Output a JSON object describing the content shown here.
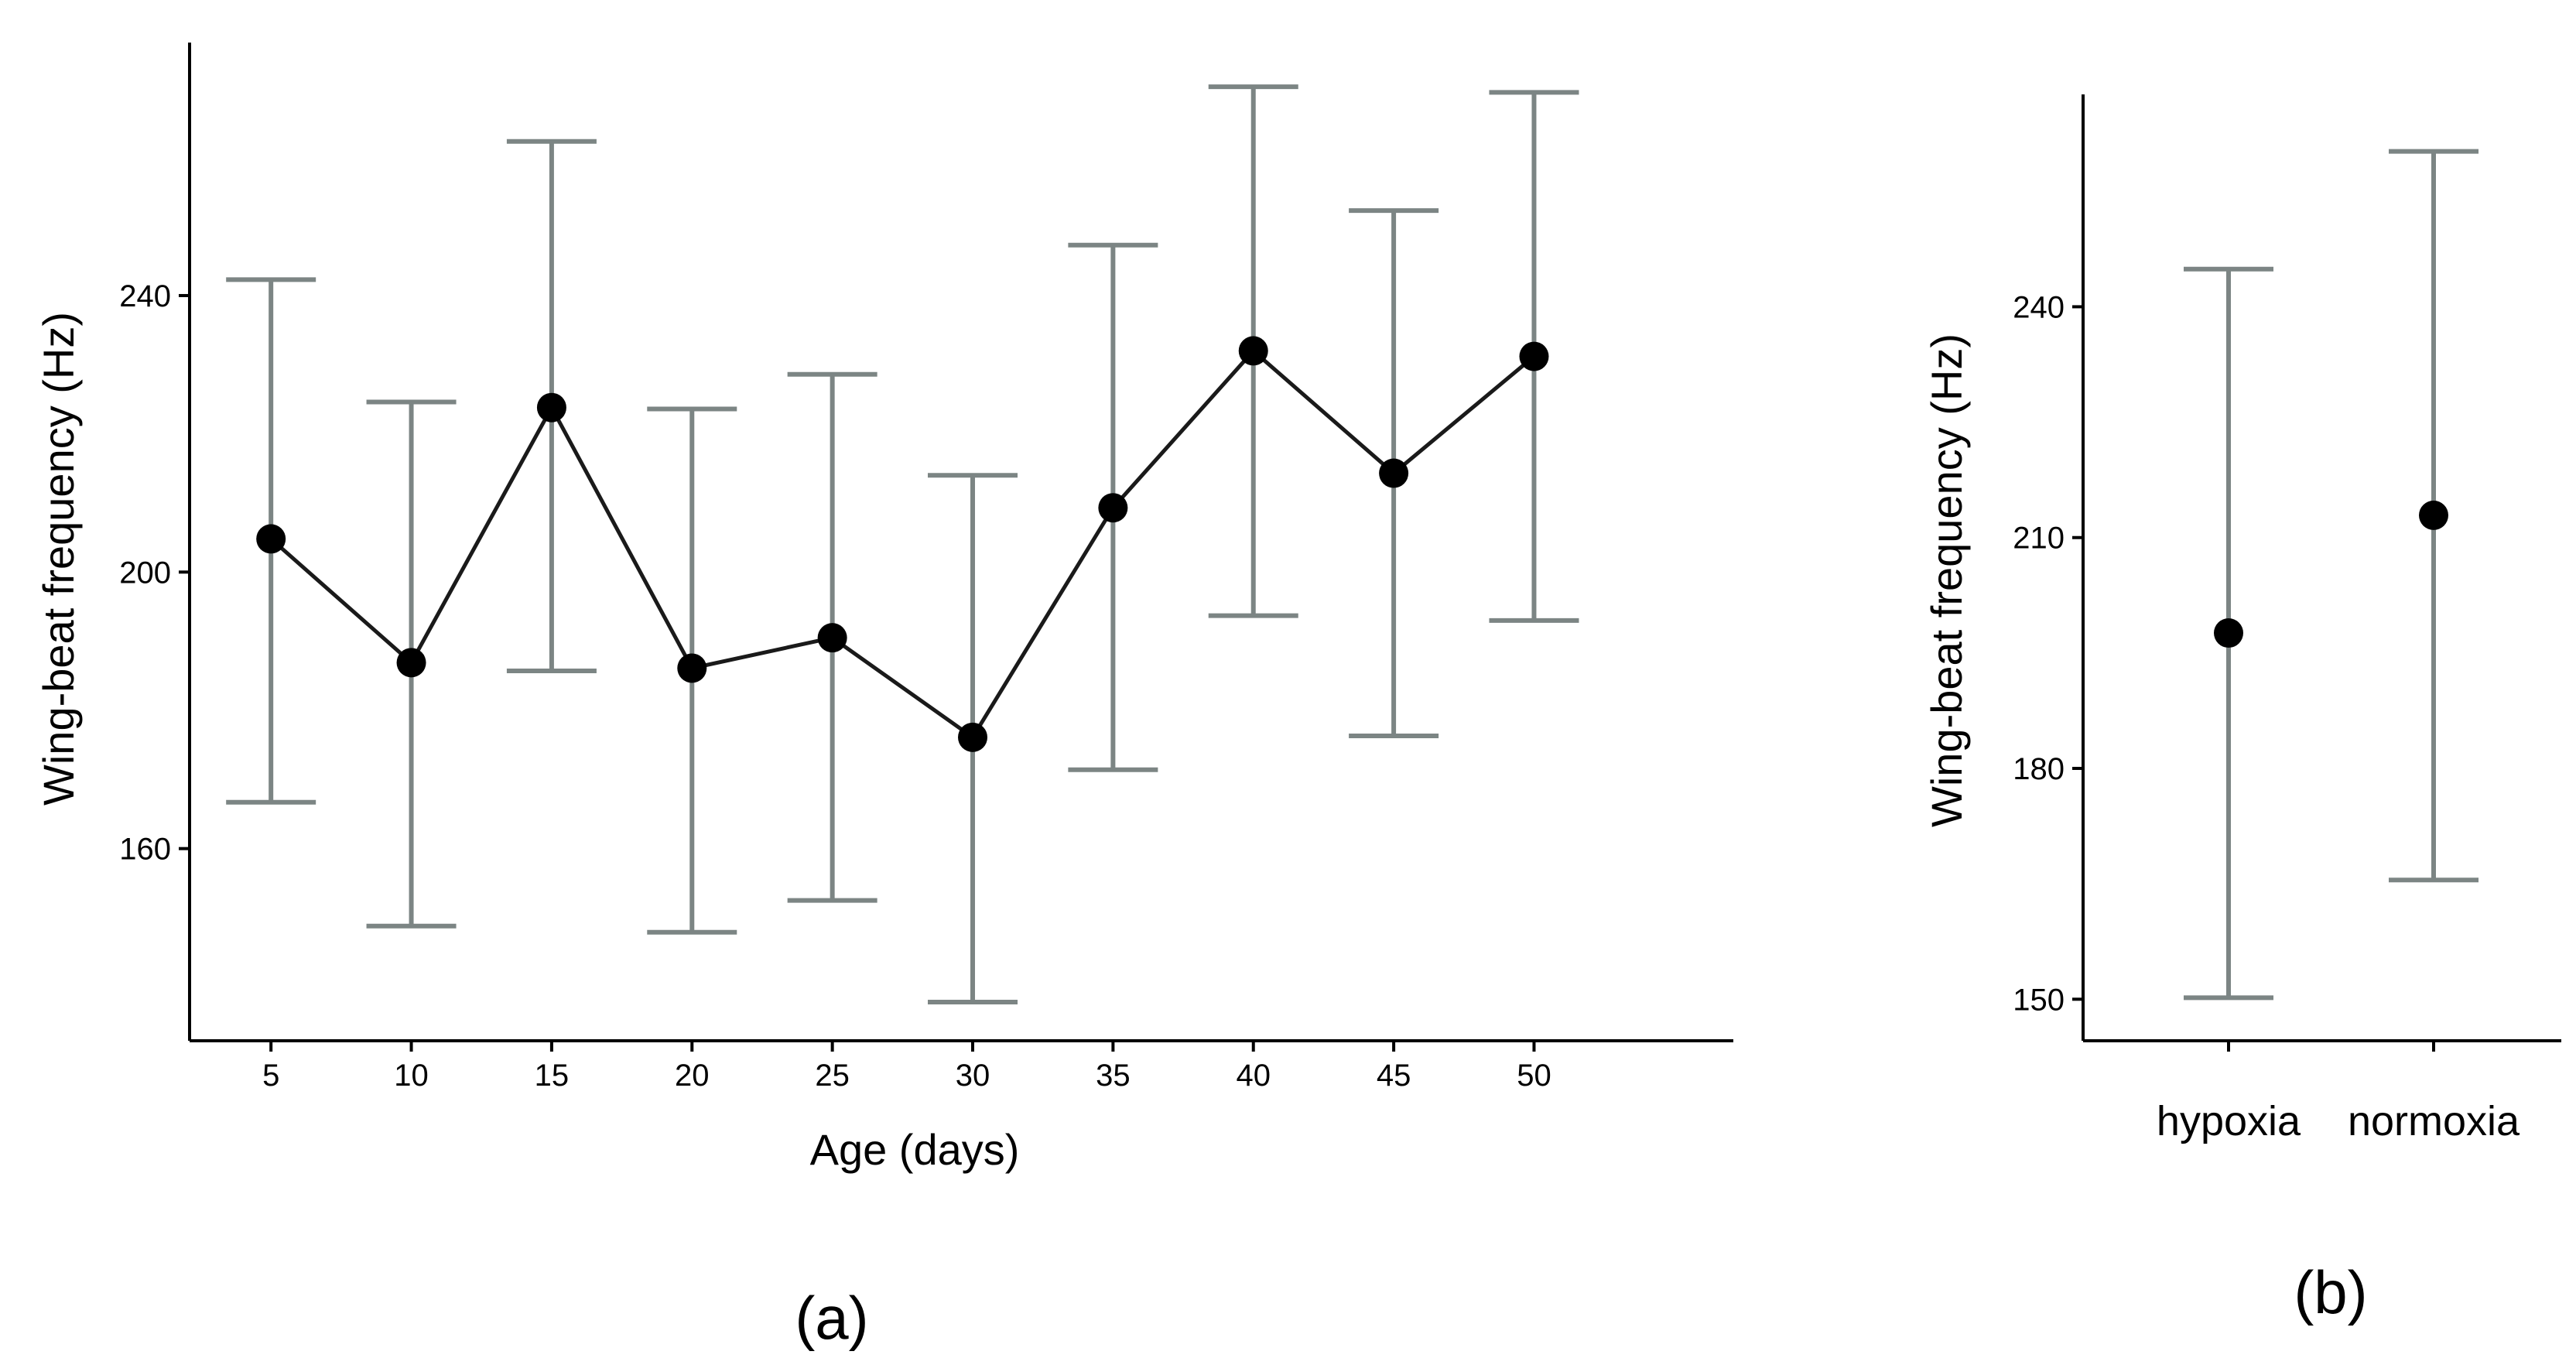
{
  "chart_data": [
    {
      "type": "line",
      "panel_label": "(a)",
      "xlabel": "Age (days)",
      "ylabel": "Wing-beat frequency (Hz)",
      "x": [
        5,
        10,
        15,
        20,
        25,
        30,
        35,
        40,
        45,
        50
      ],
      "x_tick_labels": [
        "5",
        "10",
        "15",
        "20",
        "25",
        "30",
        "35",
        "40",
        "45",
        "50"
      ],
      "y_tick_values": [
        160,
        200,
        240
      ],
      "y_tick_labels": [
        "160",
        "200",
        "240"
      ],
      "xlim": [
        2.1,
        57.1
      ],
      "ylim": [
        132.2,
        276.6
      ],
      "grid": false,
      "series": [
        {
          "name": "mean",
          "values": [
            204.8,
            186.9,
            223.8,
            186.1,
            190.5,
            176.1,
            209.3,
            232.0,
            214.3,
            231.2
          ],
          "lower": [
            166.7,
            148.8,
            185.7,
            147.9,
            152.5,
            137.8,
            171.4,
            193.7,
            176.3,
            193.0
          ],
          "upper": [
            242.3,
            224.6,
            262.3,
            223.6,
            228.6,
            214.0,
            247.3,
            270.2,
            252.3,
            269.4
          ]
        }
      ],
      "colors": {
        "line": "#1a1a1a",
        "point": "#000000",
        "errorbar": "#7c8584"
      }
    },
    {
      "type": "scatter",
      "panel_label": "(b)",
      "xlabel": "",
      "ylabel": "Wing-beat frequency (Hz)",
      "categories": [
        "hypoxia",
        "normoxia"
      ],
      "y_tick_values": [
        150,
        180,
        210,
        240
      ],
      "y_tick_labels": [
        "150",
        "180",
        "210",
        "240"
      ],
      "ylim": [
        144.6,
        267.6
      ],
      "grid": false,
      "series": [
        {
          "name": "mean",
          "values": [
            197.6,
            212.9
          ],
          "lower": [
            150.2,
            165.5
          ],
          "upper": [
            244.9,
            260.2
          ]
        }
      ],
      "colors": {
        "point": "#000000",
        "errorbar": "#7c8584"
      }
    }
  ]
}
